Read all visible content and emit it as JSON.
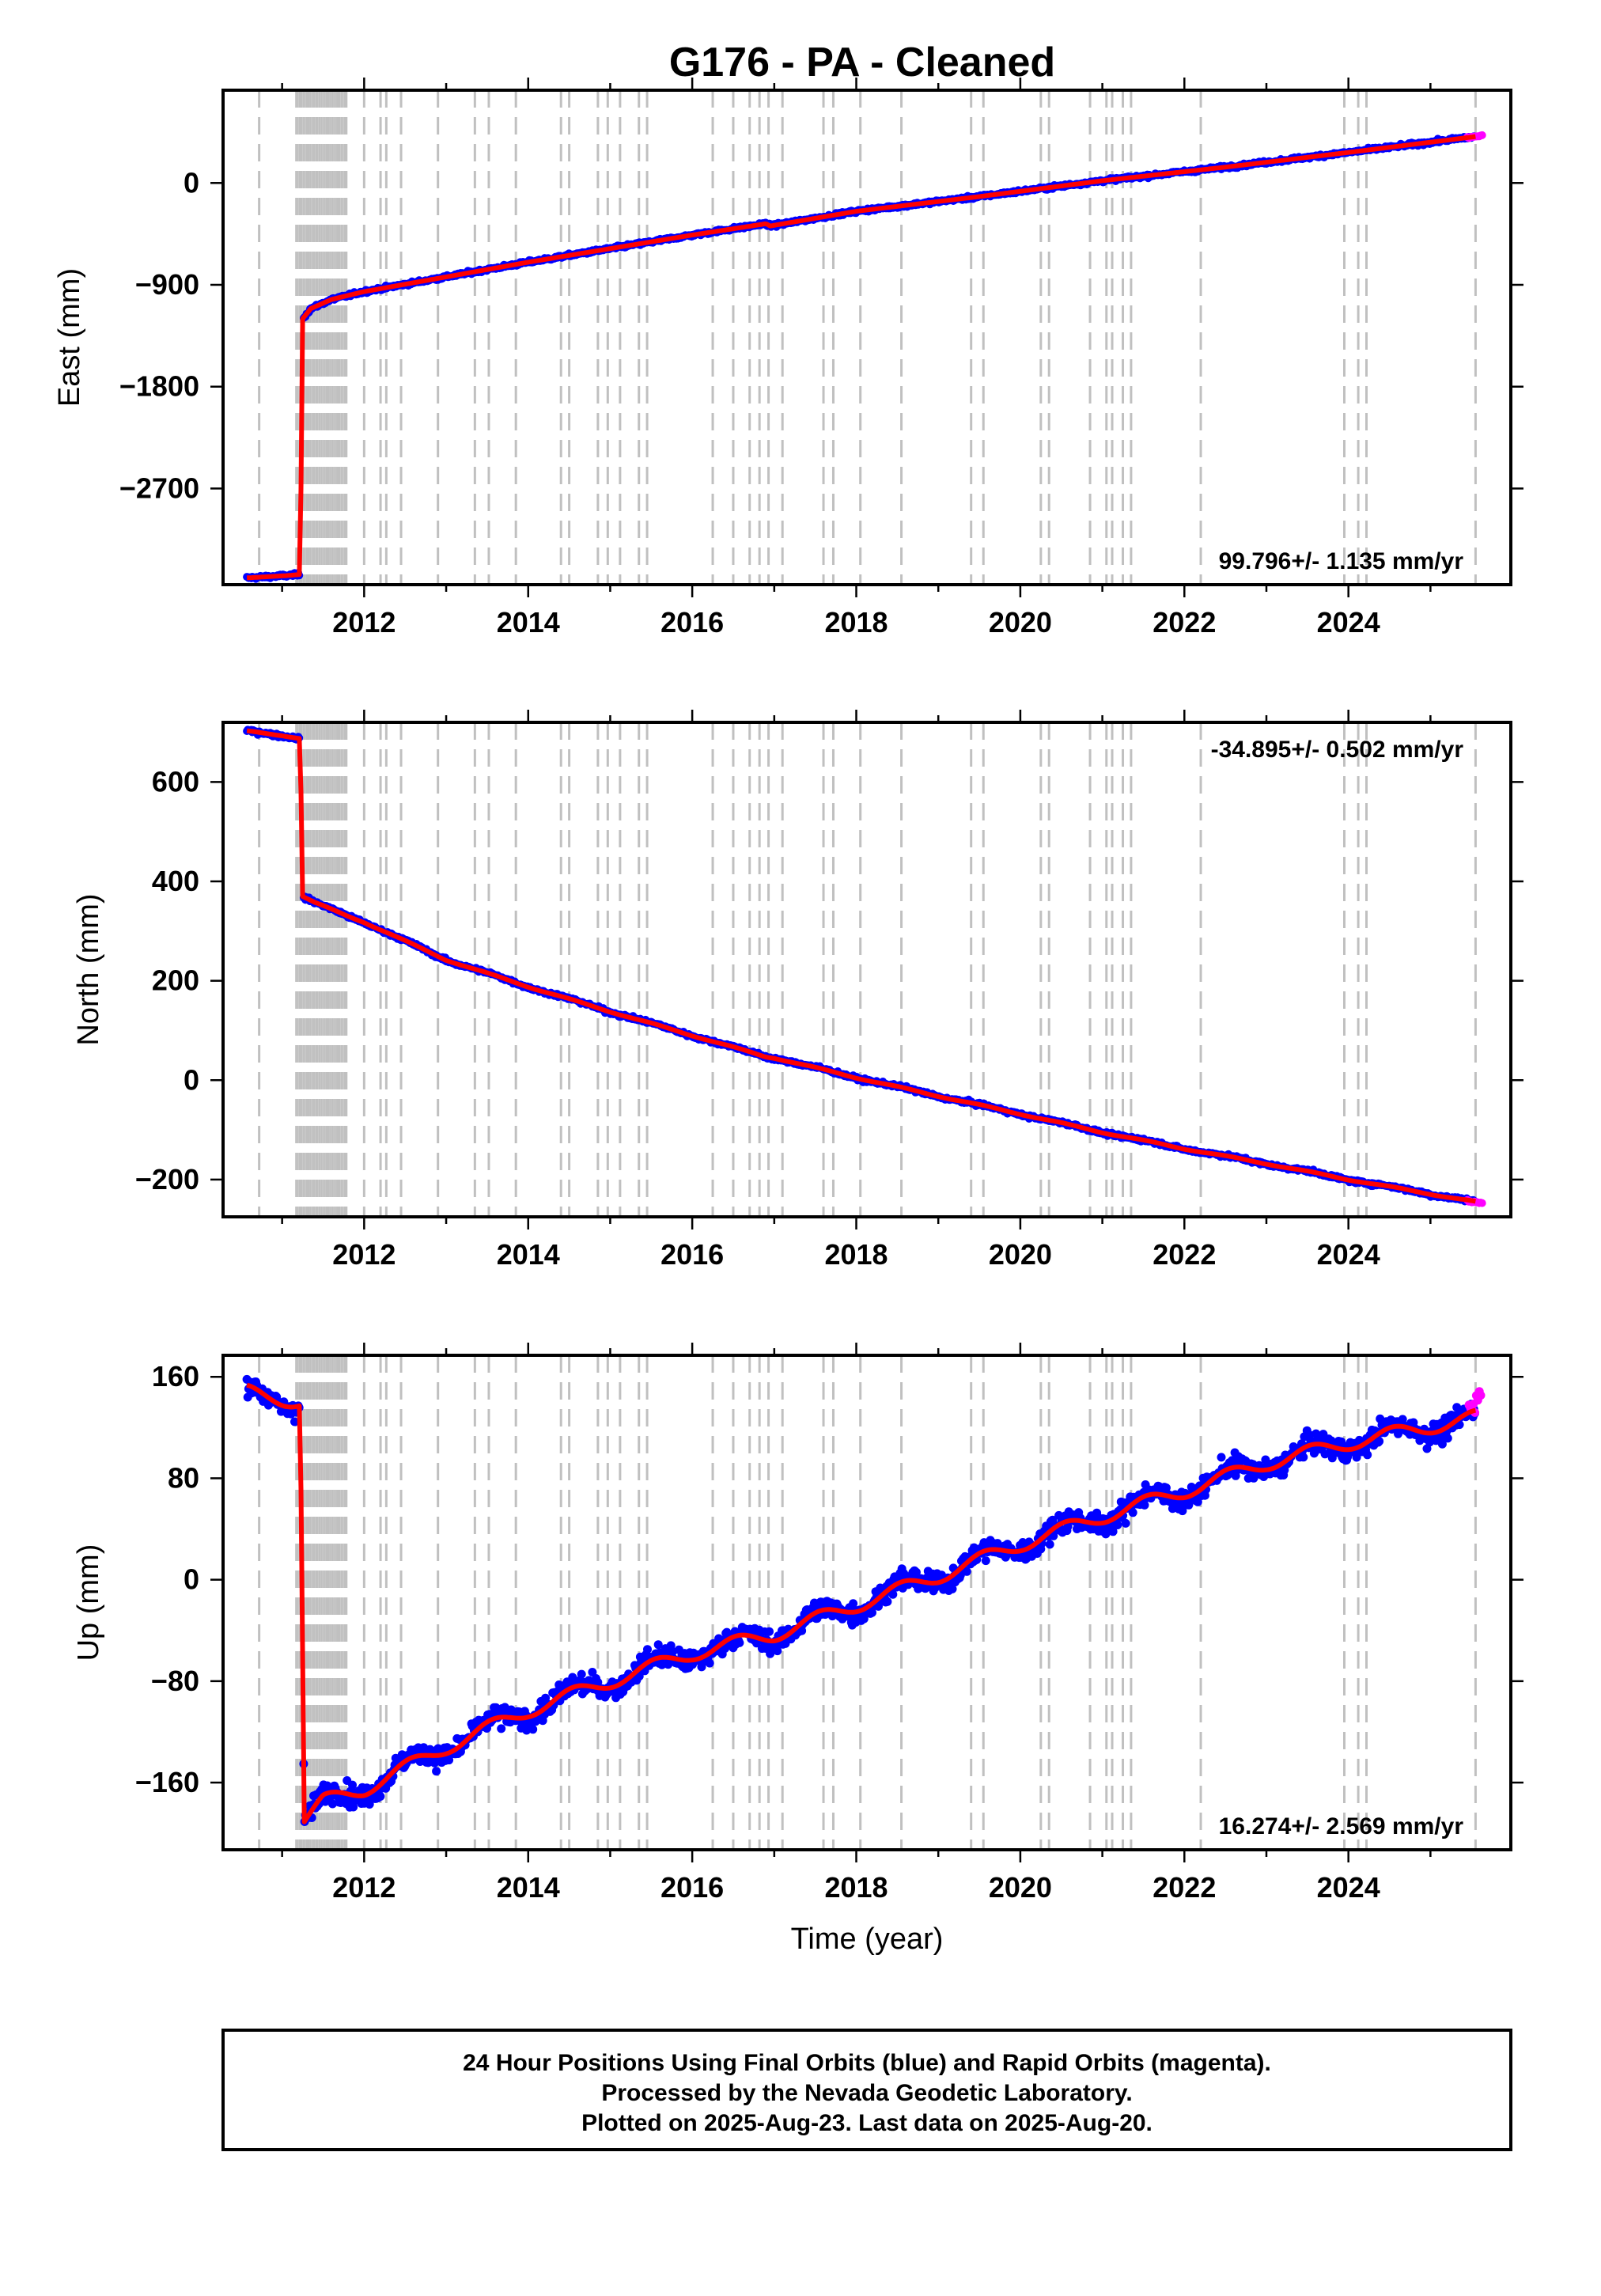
{
  "page": {
    "title": "G176  - PA - Cleaned",
    "footer_lines": [
      "24 Hour Positions Using Final Orbits (blue) and Rapid Orbits (magenta).",
      "Processed by the Nevada Geodetic Laboratory.",
      "Plotted on 2025-Aug-23. Last data on 2025-Aug-20."
    ]
  },
  "colors": {
    "final_orbits": "#0000ff",
    "rapid_orbits": "#ff00ff",
    "model_fit": "#ff0000",
    "event_lines": "#c0c0c0",
    "frame": "#000000"
  },
  "chart_data": [
    {
      "type": "scatter",
      "component": "east",
      "title": "G176  - PA - Cleaned",
      "xlabel": "",
      "ylabel": "East (mm)",
      "xlim": [
        2010.28,
        2025.98
      ],
      "ylim": [
        -3550,
        820
      ],
      "xticks": [
        2012,
        2014,
        2016,
        2018,
        2020,
        2022,
        2024
      ],
      "yticks": [
        0,
        -900,
        -1800,
        -2700
      ],
      "ytick_labels": [
        "0",
        "−900",
        "−1800",
        "−2700"
      ],
      "rate_text": "99.796+/- 1.135 mm/yr",
      "rate_position": "bottom-right",
      "series": [
        {
          "name": "final",
          "x_start": 2010.57,
          "x_end": 2025.55,
          "noise": 12,
          "seasonal": 0,
          "knots": [
            [
              2010.57,
              -3490
            ],
            [
              2011.05,
              -3470
            ],
            [
              2011.22,
              -3460
            ],
            [
              2011.25,
              -1200
            ],
            [
              2011.35,
              -1110
            ],
            [
              2011.6,
              -1030
            ],
            [
              2012.0,
              -960
            ],
            [
              2013.0,
              -830
            ],
            [
              2014.0,
              -700
            ],
            [
              2015.0,
              -580
            ],
            [
              2016.0,
              -460
            ],
            [
              2016.9,
              -360
            ],
            [
              2016.95,
              -380
            ],
            [
              2018.0,
              -250
            ],
            [
              2019.5,
              -120
            ],
            [
              2021.0,
              20
            ],
            [
              2022.5,
              140
            ],
            [
              2024.0,
              270
            ],
            [
              2025.55,
              410
            ]
          ]
        },
        {
          "name": "rapid",
          "x_start": 2025.45,
          "x_end": 2025.63,
          "noise": 6,
          "seasonal": 0,
          "knots": [
            [
              2025.45,
              400
            ],
            [
              2025.63,
              420
            ]
          ]
        }
      ]
    },
    {
      "type": "scatter",
      "component": "north",
      "xlabel": "",
      "ylabel": "North (mm)",
      "xlim": [
        2010.28,
        2025.98
      ],
      "ylim": [
        -275,
        720
      ],
      "xticks": [
        2012,
        2014,
        2016,
        2018,
        2020,
        2022,
        2024
      ],
      "yticks": [
        600,
        400,
        200,
        0,
        -200
      ],
      "ytick_labels": [
        "600",
        "400",
        "200",
        "0",
        "−200"
      ],
      "rate_text": "-34.895+/- 0.502 mm/yr",
      "rate_position": "top-right",
      "series": [
        {
          "name": "final",
          "x_start": 2010.57,
          "x_end": 2025.55,
          "noise": 3,
          "seasonal": 1.5,
          "knots": [
            [
              2010.57,
              702
            ],
            [
              2011.0,
              694
            ],
            [
              2011.22,
              688
            ],
            [
              2011.25,
              370
            ],
            [
              2011.4,
              357
            ],
            [
              2011.8,
              330
            ],
            [
              2012.0,
              318
            ],
            [
              2013.0,
              242
            ],
            [
              2014.0,
              188
            ],
            [
              2015.0,
              138
            ],
            [
              2016.0,
              90
            ],
            [
              2016.9,
              47
            ],
            [
              2017.0,
              45
            ],
            [
              2018.0,
              5
            ],
            [
              2019.0,
              -32
            ],
            [
              2020.0,
              -68
            ],
            [
              2021.0,
              -105
            ],
            [
              2022.0,
              -138
            ],
            [
              2023.0,
              -168
            ],
            [
              2024.0,
              -200
            ],
            [
              2025.55,
              -245
            ]
          ]
        },
        {
          "name": "rapid",
          "x_start": 2025.45,
          "x_end": 2025.63,
          "noise": 2,
          "seasonal": 0,
          "knots": [
            [
              2025.45,
              -243
            ],
            [
              2025.63,
              -248
            ]
          ]
        }
      ]
    },
    {
      "type": "scatter",
      "component": "up",
      "xlabel": "Time (year)",
      "ylabel": "Up (mm)",
      "xlim": [
        2010.28,
        2025.98
      ],
      "ylim": [
        -213,
        177
      ],
      "xticks": [
        2012,
        2014,
        2016,
        2018,
        2020,
        2022,
        2024
      ],
      "yticks": [
        160,
        80,
        0,
        -80,
        -160
      ],
      "ytick_labels": [
        "160",
        "80",
        "0",
        "−80",
        "−160"
      ],
      "rate_text": "16.274+/- 2.569 mm/yr",
      "rate_position": "bottom-right",
      "series": [
        {
          "name": "final",
          "x_start": 2010.57,
          "x_end": 2025.55,
          "noise": 7,
          "seasonal": 7,
          "knots": [
            [
              2010.57,
              148
            ],
            [
              2011.22,
              140
            ],
            [
              2011.27,
              -190
            ],
            [
              2011.5,
              -175
            ],
            [
              2012.0,
              -165
            ],
            [
              2013.0,
              -132
            ],
            [
              2014.0,
              -103
            ],
            [
              2015.0,
              -80
            ],
            [
              2016.0,
              -58
            ],
            [
              2017.0,
              -43
            ],
            [
              2018.0,
              -20
            ],
            [
              2019.0,
              3
            ],
            [
              2020.0,
              28
            ],
            [
              2021.0,
              50
            ],
            [
              2022.0,
              70
            ],
            [
              2023.0,
              92
            ],
            [
              2024.0,
              108
            ],
            [
              2025.55,
              128
            ]
          ]
        },
        {
          "name": "rapid",
          "x_start": 2025.47,
          "x_end": 2025.63,
          "noise": 7,
          "seasonal": 0,
          "knots": [
            [
              2025.47,
              138
            ],
            [
              2025.63,
              145
            ]
          ]
        }
      ]
    }
  ],
  "event_lines": {
    "dense_band": [
      2011.17,
      2011.8
    ],
    "years": [
      2010.72,
      2011.22,
      2011.32,
      2011.42,
      2011.55,
      2011.68,
      2011.78,
      2012.0,
      2012.2,
      2012.27,
      2012.45,
      2012.9,
      2013.35,
      2013.52,
      2013.85,
      2014.4,
      2014.5,
      2014.85,
      2014.97,
      2015.12,
      2015.35,
      2015.45,
      2016.25,
      2016.5,
      2016.7,
      2016.82,
      2016.93,
      2017.1,
      2017.6,
      2017.72,
      2018.05,
      2018.55,
      2019.4,
      2019.55,
      2020.25,
      2020.35,
      2020.85,
      2021.05,
      2021.12,
      2021.25,
      2021.35,
      2022.2,
      2023.95,
      2024.12,
      2024.22,
      2025.55
    ]
  }
}
